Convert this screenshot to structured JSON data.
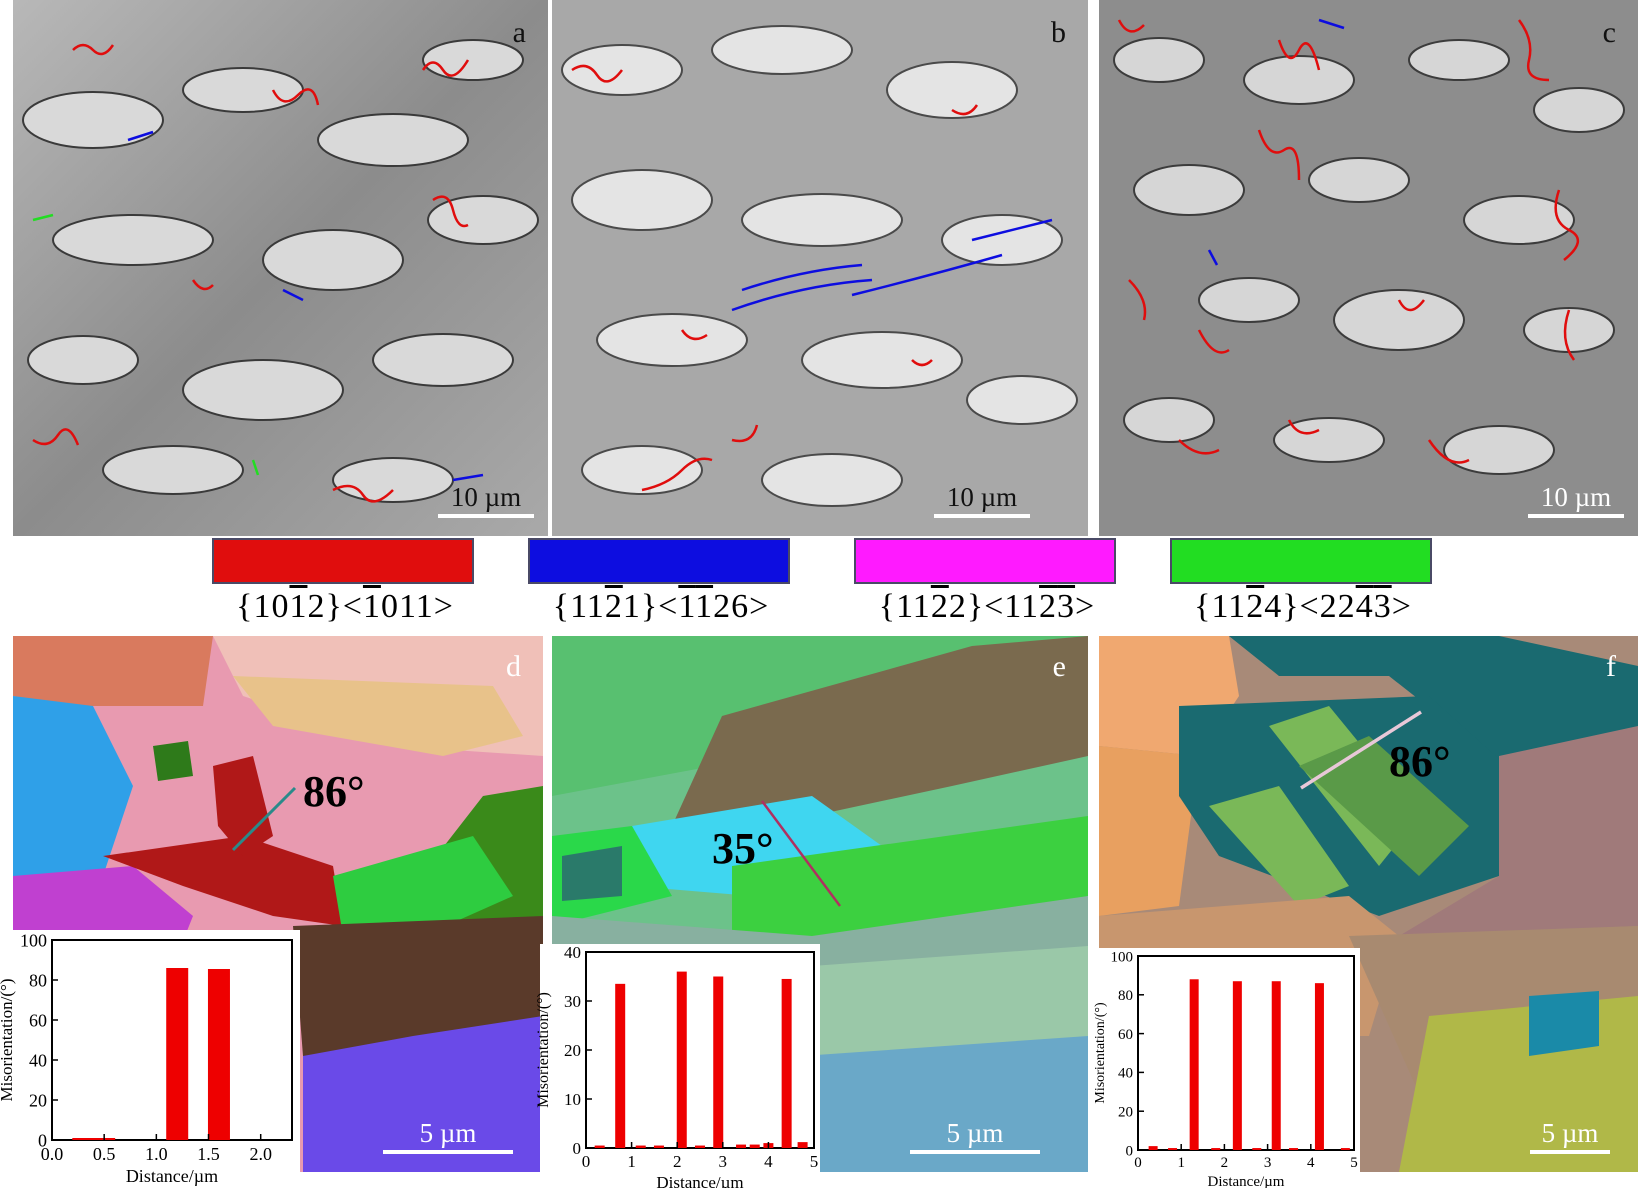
{
  "panels_top": [
    {
      "letter": "a",
      "scale": "10 µm"
    },
    {
      "letter": "b",
      "scale": "10 µm"
    },
    {
      "letter": "c",
      "scale": "10 µm"
    }
  ],
  "legend": [
    {
      "color": "#e00d0d",
      "label_html": "{10<span class='ov'>1</span>2}&lt;<span class='ov'>1</span>011&gt;"
    },
    {
      "color": "#0d0de0",
      "label_html": "{11<span class='ov'>2</span>1}&lt;<span class='ov'>1</span><span class='ov'>1</span>26&gt;"
    },
    {
      "color": "#ff1aff",
      "label_html": "{11<span class='ov'>2</span>2}&lt;11<span class='ov'>2</span><span class='ov'>3</span>&gt;"
    },
    {
      "color": "#22dd22",
      "label_html": "{11<span class='ov'>2</span>4}&lt;22<span class='ov'>4</span><span class='ov'>3</span>&gt;"
    }
  ],
  "panels_bottom": [
    {
      "letter": "d",
      "scale": "5 µm",
      "angle": "86°"
    },
    {
      "letter": "e",
      "scale": "5 µm",
      "angle": "35°"
    },
    {
      "letter": "f",
      "scale": "5 µm",
      "angle": "86°"
    }
  ],
  "chart_data": [
    {
      "type": "bar",
      "xlabel": "Distance/µm",
      "ylabel": "Misorientation/(°)",
      "xlim": [
        0,
        2.3
      ],
      "ylim": [
        0,
        100
      ],
      "xticks": [
        "0.0",
        "0.5",
        "1.0",
        "1.5",
        "2.0"
      ],
      "yticks": [
        "0",
        "20",
        "40",
        "60",
        "80",
        "100"
      ],
      "x": [
        0.3,
        0.5,
        1.2,
        1.6
      ],
      "values": [
        1,
        1,
        86,
        85.5
      ],
      "color": "#ee0000"
    },
    {
      "type": "bar",
      "xlabel": "Distance/µm",
      "ylabel": "Misorientation/(°)",
      "xlim": [
        0,
        5
      ],
      "ylim": [
        0,
        40
      ],
      "xticks": [
        "0",
        "1",
        "2",
        "3",
        "4",
        "5"
      ],
      "yticks": [
        "0",
        "10",
        "20",
        "30",
        "40"
      ],
      "x": [
        0.3,
        0.75,
        1.2,
        1.6,
        2.1,
        2.5,
        2.9,
        3.4,
        3.7,
        4.0,
        4.4,
        4.75
      ],
      "values": [
        0.5,
        33.5,
        0.5,
        0.5,
        36,
        0.5,
        35,
        0.7,
        0.7,
        1,
        34.5,
        1.2
      ],
      "color": "#ee0000"
    },
    {
      "type": "bar",
      "xlabel": "Distance/µm",
      "ylabel": "Misorientation/(°)",
      "xlim": [
        0,
        5
      ],
      "ylim": [
        0,
        100
      ],
      "xticks": [
        "0",
        "1",
        "2",
        "3",
        "4",
        "5"
      ],
      "yticks": [
        "0",
        "20",
        "40",
        "60",
        "80",
        "100"
      ],
      "x": [
        0.35,
        0.8,
        1.3,
        1.8,
        2.3,
        2.75,
        3.2,
        3.6,
        4.2,
        4.8
      ],
      "values": [
        2,
        1,
        88,
        1,
        87,
        1,
        87,
        1,
        86,
        1
      ],
      "color": "#ee0000"
    }
  ]
}
